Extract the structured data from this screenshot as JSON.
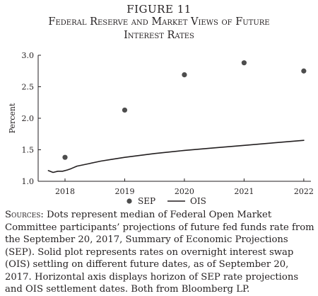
{
  "figure": {
    "label": "FIGURE 11",
    "title_line1": "Federal Reserve and Market Views of Future",
    "title_line2": "Interest Rates"
  },
  "chart_data": {
    "type": "line",
    "ylabel": "Percent",
    "xlabel": "",
    "xlim": [
      2017.55,
      2022.12
    ],
    "ylim": [
      1.0,
      3.0
    ],
    "xticks": [
      2018,
      2019,
      2020,
      2021,
      2022
    ],
    "xtick_labels": [
      "2018",
      "2019",
      "2020",
      "2021",
      "2022"
    ],
    "yticks": [
      1.0,
      1.5,
      2.0,
      2.5,
      3.0
    ],
    "ytick_labels": [
      "1.0",
      "1.5",
      "2.0",
      "2.5",
      "3.0"
    ],
    "grid": false,
    "legend_position": "bottom",
    "series": [
      {
        "name": "SEP",
        "kind": "scatter",
        "color": "#4d4d4d",
        "x": [
          2018,
          2019,
          2020,
          2021,
          2022
        ],
        "y": [
          1.38,
          2.13,
          2.69,
          2.88,
          2.75
        ]
      },
      {
        "name": "OIS",
        "kind": "line",
        "color": "#231f20",
        "x": [
          2017.72,
          2017.8,
          2017.88,
          2017.96,
          2018.04,
          2018.1,
          2018.2,
          2018.4,
          2018.6,
          2018.8,
          2019.0,
          2019.5,
          2020.0,
          2020.5,
          2021.0,
          2021.5,
          2022.0
        ],
        "y": [
          1.17,
          1.14,
          1.16,
          1.16,
          1.18,
          1.2,
          1.24,
          1.28,
          1.32,
          1.35,
          1.38,
          1.44,
          1.49,
          1.53,
          1.57,
          1.61,
          1.65
        ]
      }
    ]
  },
  "notes": {
    "sources_label": "Sources:",
    "sources_text": " Dots represent median of Federal Open Market Committee participants’ projections of future fed funds rate from the September 20, 2017, Summary of Economic Projections (SEP). Solid plot represents rates on overnight interest swap (OIS) settling on different future dates, as of September 20, 2017. Horizontal axis displays horizon of SEP rate projections and OIS settlement dates. Both from Bloomberg LP."
  }
}
